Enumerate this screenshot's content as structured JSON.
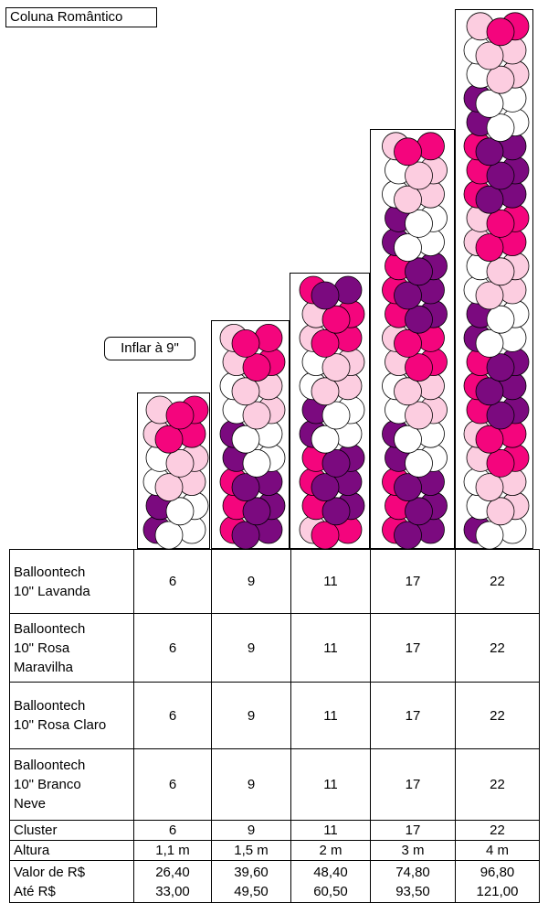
{
  "title": "Coluna Romântico",
  "note": "Inflar à 9\"",
  "colors": {
    "lavanda": "#7b0a7f",
    "rosa_maravilha": "#f4057d",
    "rosa_claro": "#fccde0",
    "branco_neve": "#ffffff"
  },
  "rows": [
    {
      "label": [
        "Balloontech",
        "10\" Lavanda"
      ],
      "values": [
        "6",
        "9",
        "11",
        "17",
        "22"
      ]
    },
    {
      "label": [
        "Balloontech",
        "10\" Rosa",
        "Maravilha"
      ],
      "values": [
        "6",
        "9",
        "11",
        "17",
        "22"
      ]
    },
    {
      "label": [
        "Balloontech",
        "10\" Rosa Claro"
      ],
      "values": [
        "6",
        "9",
        "11",
        "17",
        "22"
      ]
    },
    {
      "label": [
        "Balloontech",
        "10\" Branco",
        "Neve"
      ],
      "values": [
        "6",
        "9",
        "11",
        "17",
        "22"
      ]
    },
    {
      "label": [
        "Cluster"
      ],
      "values": [
        "6",
        "9",
        "11",
        "17",
        "22"
      ]
    },
    {
      "label": [
        "Altura"
      ],
      "values": [
        "1,1 m",
        "1,5 m",
        "2 m",
        "3 m",
        "4 m"
      ]
    },
    {
      "label": [
        "Valor de  R$",
        "Até R$"
      ],
      "values": [
        "26,40|33,00",
        "39,60|49,50",
        "48,40|60,50",
        "74,80|93,50",
        "96,80|121,00"
      ]
    }
  ],
  "columns": [
    {
      "clusters": 6,
      "pattern": [
        "wl",
        "wl",
        "pw",
        "pw",
        "mp",
        "mp"
      ]
    },
    {
      "clusters": 9,
      "pattern": [
        "lm",
        "lm",
        "lm",
        "wl",
        "wl",
        "pw",
        "pw",
        "mp",
        "mp"
      ]
    },
    {
      "clusters": 11,
      "pattern": [
        "mp",
        "lm",
        "lm",
        "lm",
        "wl",
        "wl",
        "pw",
        "pw",
        "mp",
        "mp",
        "lm"
      ]
    },
    {
      "clusters": 17,
      "pattern": [
        "lm",
        "lm",
        "lm",
        "wl",
        "wl",
        "pw",
        "pw",
        "mp",
        "mp",
        "lm",
        "lm",
        "lm",
        "wl",
        "wl",
        "pw",
        "pw",
        "mp"
      ]
    },
    {
      "clusters": 22,
      "pattern": [
        "wl",
        "pw",
        "pw",
        "mp",
        "mp",
        "lm",
        "lm",
        "lm",
        "wl",
        "wl",
        "pw",
        "pw",
        "mp",
        "mp",
        "lm",
        "lm",
        "lm",
        "wl",
        "wl",
        "pw",
        "pw",
        "mp"
      ]
    }
  ]
}
